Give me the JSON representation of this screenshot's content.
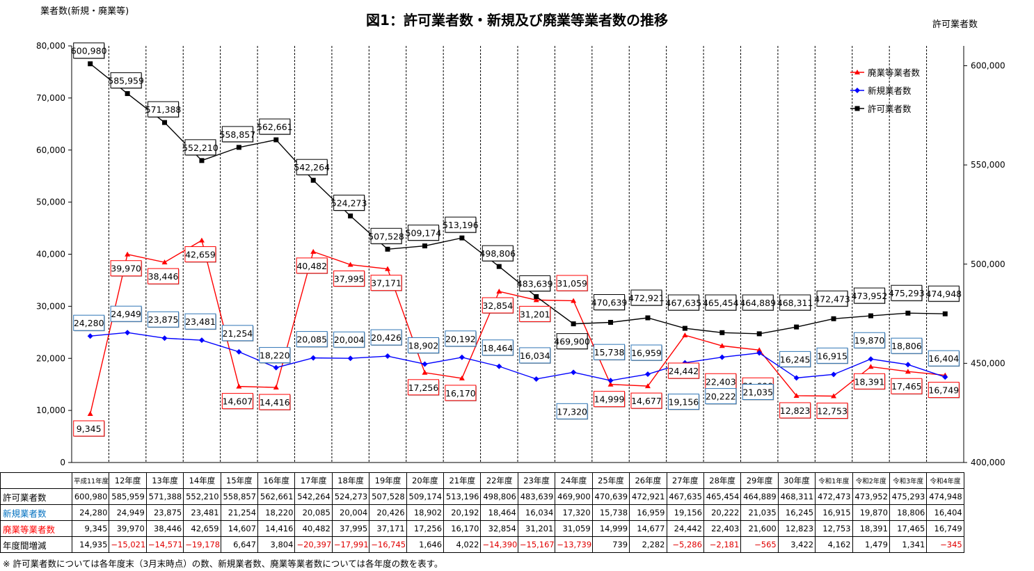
{
  "chart_data": {
    "type": "line",
    "title": "図1：許可業者数・新規及び廃業等業者数の推移",
    "left_axis_label": "業者数(新規・廃業等)",
    "right_axis_label": "許可業者数",
    "left_ylim": [
      0,
      80000
    ],
    "left_ticks": [
      "0",
      "10,000",
      "20,000",
      "30,000",
      "40,000",
      "50,000",
      "60,000",
      "70,000",
      "80,000"
    ],
    "right_ylim": [
      400000,
      610000
    ],
    "right_ticks": [
      "400,000",
      "450,000",
      "500,000",
      "550,000",
      "600,000"
    ],
    "grid": "vertical dashed lines between years",
    "legend_position": "top-right",
    "categories": [
      "平成11年度",
      "12年度",
      "13年度",
      "14年度",
      "15年度",
      "16年度",
      "17年度",
      "18年度",
      "19年度",
      "20年度",
      "21年度",
      "22年度",
      "23年度",
      "24年度",
      "25年度",
      "26年度",
      "27年度",
      "28年度",
      "29年度",
      "30年度",
      "令和1年度",
      "令和2年度",
      "令和3年度",
      "令和4年度"
    ],
    "series": [
      {
        "name": "廃業等業者数",
        "axis": "left",
        "color": "#ff0000",
        "marker": "triangle",
        "values": [
          9345,
          39970,
          38446,
          42659,
          14607,
          14416,
          40482,
          37995,
          37171,
          17256,
          16170,
          32854,
          31201,
          31059,
          14999,
          14677,
          24442,
          22403,
          21600,
          12823,
          12753,
          18391,
          17465,
          16749
        ],
        "labels": [
          "9,345",
          "39,970",
          "38,446",
          "42,659",
          "14,607",
          "14,416",
          "40,482",
          "37,995",
          "37,171",
          "17,256",
          "16,170",
          "32,854",
          "31,201",
          "31,059",
          "14,999",
          "14,677",
          "24,442",
          "22,403",
          "21,600",
          "12,823",
          "12,753",
          "18,391",
          "17,465",
          "16,749"
        ]
      },
      {
        "name": "新規業者数",
        "axis": "left",
        "color": "#0000ff",
        "marker": "diamond",
        "values": [
          24280,
          24949,
          23875,
          23481,
          21254,
          18220,
          20085,
          20004,
          20426,
          18902,
          20192,
          18464,
          16034,
          17320,
          15738,
          16959,
          19156,
          20222,
          21035,
          16245,
          16915,
          19870,
          18806,
          16404
        ],
        "labels": [
          "24,280",
          "24,949",
          "23,875",
          "23,481",
          "21,254",
          "18,220",
          "20,085",
          "20,004",
          "20,426",
          "18,902",
          "20,192",
          "18,464",
          "16,034",
          "17,320",
          "15,738",
          "16,959",
          "19,156",
          "20,222",
          "21,035",
          "16,245",
          "16,915",
          "19,870",
          "18,806",
          "16,404"
        ]
      },
      {
        "name": "許可業者数",
        "axis": "right",
        "color": "#000000",
        "marker": "square",
        "values": [
          600980,
          585959,
          571388,
          552210,
          558857,
          562661,
          542264,
          524273,
          507528,
          509174,
          513196,
          498806,
          483639,
          469900,
          470639,
          472921,
          467635,
          465454,
          464889,
          468311,
          472473,
          473952,
          475293,
          474948
        ],
        "labels": [
          "600,980",
          "585,959",
          "571,388",
          "552,210",
          "558,857",
          "562,661",
          "542,264",
          "524,273",
          "507,528",
          "509,174",
          "513,196",
          "498,806",
          "483,639",
          "469,900",
          "470,639",
          "472,921",
          "467,635",
          "465,454",
          "464,889",
          "468,311",
          "472,473",
          "473,952",
          "475,293",
          "474,948"
        ]
      }
    ]
  },
  "table": {
    "header_years": [
      "平成11年度",
      "12年度",
      "13年度",
      "14年度",
      "15年度",
      "16年度",
      "17年度",
      "18年度",
      "19年度",
      "20年度",
      "21年度",
      "22年度",
      "23年度",
      "24年度",
      "25年度",
      "26年度",
      "27年度",
      "28年度",
      "29年度",
      "30年度",
      "令和1年度",
      "令和2年度",
      "令和3年度",
      "令和4年度"
    ],
    "rows": [
      {
        "label": "許可業者数",
        "color": "#000000",
        "cells": [
          "600,980",
          "585,959",
          "571,388",
          "552,210",
          "558,857",
          "562,661",
          "542,264",
          "524,273",
          "507,528",
          "509,174",
          "513,196",
          "498,806",
          "483,639",
          "469,900",
          "470,639",
          "472,921",
          "467,635",
          "465,454",
          "464,889",
          "468,311",
          "472,473",
          "473,952",
          "475,293",
          "474,948"
        ]
      },
      {
        "label": "新規業者数",
        "color": "#0070c0",
        "cells": [
          "24,280",
          "24,949",
          "23,875",
          "23,481",
          "21,254",
          "18,220",
          "20,085",
          "20,004",
          "20,426",
          "18,902",
          "20,192",
          "18,464",
          "16,034",
          "17,320",
          "15,738",
          "16,959",
          "19,156",
          "20,222",
          "21,035",
          "16,245",
          "16,915",
          "19,870",
          "18,806",
          "16,404"
        ]
      },
      {
        "label": "廃業等業者数",
        "color": "#ff0000",
        "cells": [
          "9,345",
          "39,970",
          "38,446",
          "42,659",
          "14,607",
          "14,416",
          "40,482",
          "37,995",
          "37,171",
          "17,256",
          "16,170",
          "32,854",
          "31,201",
          "31,059",
          "14,999",
          "14,677",
          "24,442",
          "22,403",
          "21,600",
          "12,823",
          "12,753",
          "18,391",
          "17,465",
          "16,749"
        ]
      },
      {
        "label": "年度間増減",
        "color": "#000000",
        "cells": [
          "14,935",
          "−15,021",
          "−14,571",
          "−19,178",
          "6,647",
          "3,804",
          "−20,397",
          "−17,991",
          "−16,745",
          "1,646",
          "4,022",
          "−14,390",
          "−15,167",
          "−13,739",
          "739",
          "2,282",
          "−5,286",
          "−2,181",
          "−565",
          "3,422",
          "4,162",
          "1,479",
          "1,341",
          "−345"
        ]
      }
    ]
  },
  "note": "※  許可業者数については各年度末（3月末時点）の数、新規業者数、廃業等業者数については各年度の数を表す。"
}
